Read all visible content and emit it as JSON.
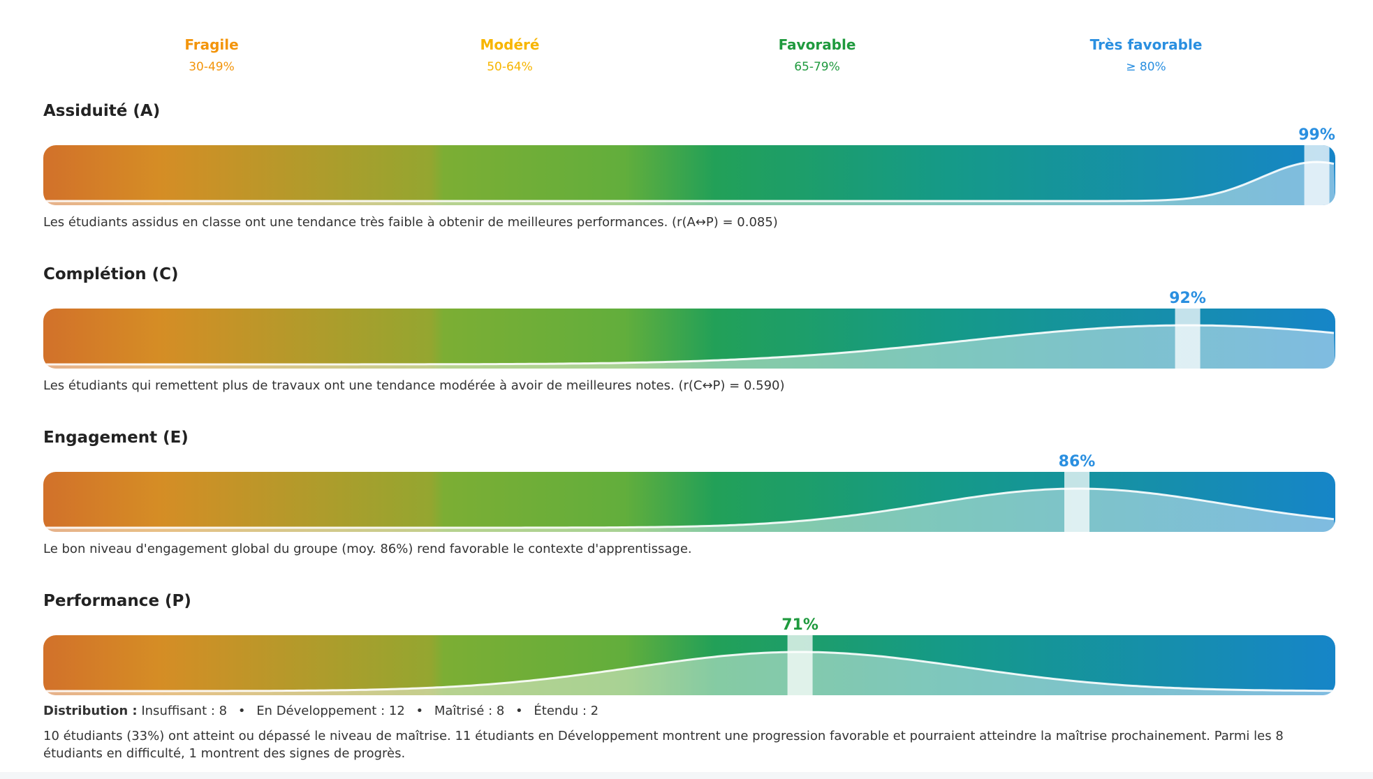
{
  "colors": {
    "fragile": "#f3950c",
    "modere": "#f7b500",
    "favorable": "#1f9a3e",
    "tres_favorable": "#2a8fe0"
  },
  "legend": [
    {
      "name": "Fragile",
      "range": "30-49%"
    },
    {
      "name": "Modéré",
      "range": "50-64%"
    },
    {
      "name": "Favorable",
      "range": "65-79%"
    },
    {
      "name": "Très favorable",
      "range": "≥ 80%"
    }
  ],
  "sections": [
    {
      "title": "Assiduité (A)",
      "mean_label": "99%",
      "mean": 99,
      "sd": 3,
      "caption": "Les étudiants assidus en classe ont une tendance très faible à obtenir de meilleures performances. (r(A↔P) = 0.085)"
    },
    {
      "title": "Complétion (C)",
      "mean_label": "92%",
      "mean": 92,
      "sd": 12,
      "caption": "Les étudiants qui remettent plus de travaux ont une tendance modérée à avoir de meilleures notes. (r(C↔P) = 0.590)"
    },
    {
      "title": "Engagement (E)",
      "mean_label": "86%",
      "mean": 86,
      "sd": 8,
      "caption": "Le bon niveau d'engagement global du groupe (moy. 86%) rend favorable le contexte d'apprentissage."
    },
    {
      "title": "Performance (P)",
      "mean_label": "71%",
      "mean": 71,
      "sd": 9,
      "distribution_label": "Distribution :",
      "distribution": [
        "Insuffisant : 8",
        "En Développement : 12",
        "Maîtrisé : 8",
        "Étendu : 2"
      ],
      "caption": "10 étudiants (33%) ont atteint ou dépassé le niveau de maîtrise. 11 étudiants en Développement montrent une progression favorable et pourraient atteindre la maîtrise prochainement. Parmi les 8 étudiants en difficulté, 1 montrent des signes de progrès."
    }
  ]
}
